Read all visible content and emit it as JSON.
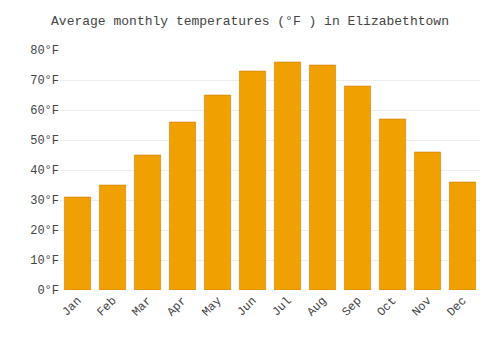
{
  "chart_data": {
    "type": "bar",
    "title": "Average monthly temperatures (°F ) in Elizabethtown",
    "categories": [
      "Jan",
      "Feb",
      "Mar",
      "Apr",
      "May",
      "Jun",
      "Jul",
      "Aug",
      "Sep",
      "Oct",
      "Nov",
      "Dec"
    ],
    "values": [
      31,
      35,
      45,
      56,
      65,
      73,
      76,
      75,
      68,
      57,
      46,
      36
    ],
    "color": "#F0A000",
    "ylim": [
      0,
      80
    ],
    "yticks": [
      {
        "value": 0,
        "label": "0°F"
      },
      {
        "value": 10,
        "label": "10°F"
      },
      {
        "value": 20,
        "label": "20°F"
      },
      {
        "value": 30,
        "label": "30°F"
      },
      {
        "value": 40,
        "label": "40°F"
      },
      {
        "value": 50,
        "label": "50°F"
      },
      {
        "value": 60,
        "label": "60°F"
      },
      {
        "value": 70,
        "label": "70°F"
      },
      {
        "value": 80,
        "label": "80°F"
      }
    ],
    "grid": true
  }
}
